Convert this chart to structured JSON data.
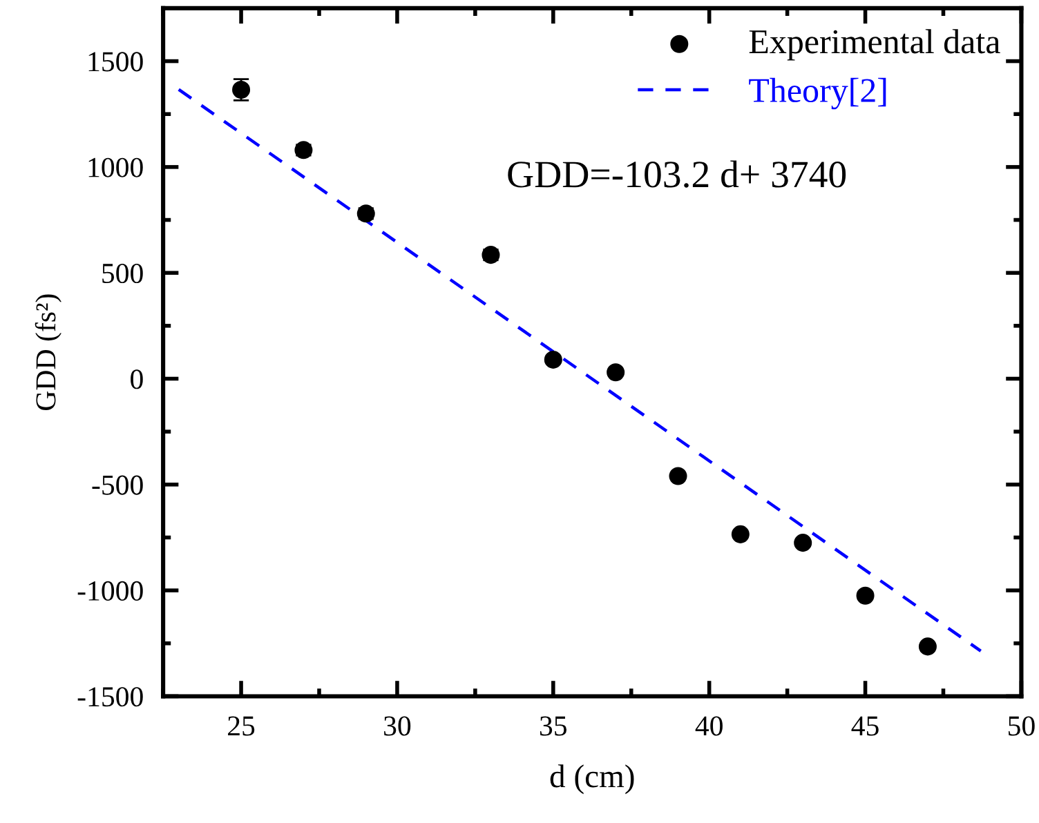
{
  "chart_data": {
    "type": "scatter",
    "xlabel": "d (cm)",
    "ylabel": "GDD (fs²)",
    "xlim": [
      22.5,
      50
    ],
    "xticks": [
      25,
      30,
      35,
      40,
      45,
      50
    ],
    "ylim": [
      -1500,
      1750
    ],
    "yticks": [
      -1500,
      -1000,
      -500,
      0,
      500,
      1000,
      1500
    ],
    "series": [
      {
        "name": "Experimental data",
        "color": "#000000",
        "marker": "circle",
        "x": [
          25,
          27,
          29,
          33,
          35,
          37,
          39,
          41,
          43,
          45,
          47
        ],
        "values": [
          1365,
          1080,
          780,
          585,
          90,
          30,
          -460,
          -735,
          -775,
          -1025,
          -1265
        ],
        "errors": [
          50,
          25,
          25,
          25,
          null,
          null,
          null,
          null,
          null,
          null,
          null
        ]
      },
      {
        "name": "Theory[2]",
        "type": "line",
        "color": "#0000ff",
        "line_style": "dashed",
        "x": [
          23,
          48.7
        ],
        "values": [
          1366,
          -1286
        ]
      }
    ],
    "annotations": [
      "GDD=-103.2 d+ 3740"
    ],
    "legend": "top right",
    "grid": false
  }
}
